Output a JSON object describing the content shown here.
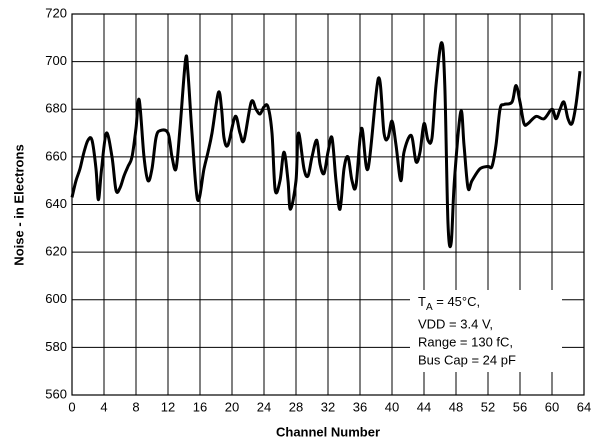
{
  "chart_data": {
    "type": "line",
    "xlabel": "Channel Number",
    "ylabel": "Noise - in Electrons",
    "xlim": [
      0,
      64
    ],
    "ylim": [
      560,
      720
    ],
    "xticks": [
      0,
      4,
      8,
      12,
      16,
      20,
      24,
      28,
      32,
      36,
      40,
      44,
      48,
      52,
      56,
      60,
      64
    ],
    "yticks": [
      560,
      580,
      600,
      620,
      640,
      660,
      680,
      700,
      720
    ],
    "grid": true,
    "x": [
      0,
      0.5,
      1,
      1.5,
      2,
      2.5,
      3,
      3.3,
      3.7,
      4.3,
      5,
      5.5,
      6,
      6.5,
      7,
      7.5,
      8,
      8.4,
      9,
      9.5,
      10,
      10.5,
      11,
      12,
      12.5,
      13,
      13.5,
      14.2,
      14.5,
      15,
      15.7,
      16.5,
      17,
      17.5,
      18.3,
      18.7,
      19,
      19.5,
      20.4,
      21,
      21.5,
      22.4,
      23,
      23.5,
      24,
      24.5,
      25,
      25.4,
      26,
      26.5,
      27,
      27.3,
      28,
      28.3,
      29,
      29.5,
      30,
      30.6,
      31,
      31.5,
      32,
      32.5,
      33,
      33.5,
      34,
      34.5,
      35,
      35.5,
      36.2,
      37,
      38.3,
      39,
      39.5,
      40,
      40.5,
      41.1,
      41.5,
      42.4,
      43,
      43.5,
      44,
      44.5,
      45,
      45.5,
      46.2,
      46.6,
      47,
      47.4,
      47.8,
      48.6,
      49,
      49.5,
      50,
      51,
      52,
      52.5,
      53,
      53.5,
      54,
      55,
      55.5,
      56,
      56.5,
      57,
      58,
      59,
      60,
      60.5,
      61,
      61.5,
      62,
      62.5,
      63,
      63.5
    ],
    "series": [
      {
        "color": "#000000",
        "values": [
          643,
          650,
          655,
          662,
          667,
          667,
          655,
          642,
          655,
          670,
          660,
          646,
          647,
          652,
          656,
          660,
          672,
          684,
          660,
          650,
          655,
          668,
          671,
          670,
          660,
          655,
          672,
          701,
          695,
          670,
          642,
          655,
          662,
          670,
          687,
          680,
          668,
          665,
          677,
          670,
          667,
          683,
          680,
          678,
          681,
          681,
          670,
          646,
          650,
          662,
          650,
          638,
          650,
          670,
          655,
          652,
          660,
          667,
          657,
          653,
          662,
          668,
          650,
          638,
          655,
          660,
          650,
          648,
          672,
          655,
          693,
          670,
          668,
          675,
          665,
          650,
          662,
          669,
          658,
          662,
          674,
          667,
          668,
          690,
          708,
          690,
          632,
          624,
          650,
          679,
          665,
          647,
          650,
          655,
          656,
          656,
          665,
          680,
          682,
          683,
          690,
          683,
          674,
          674,
          677,
          676,
          680,
          676,
          680,
          683,
          676,
          674,
          682,
          696
        ]
      }
    ],
    "annotation": {
      "symbol": "T",
      "subscript": "A",
      "rest": " = 45°C,",
      "lines": [
        "VDD = 3.4 V,",
        "Range = 130 fC,",
        "Bus Cap = 24 pF"
      ]
    }
  }
}
